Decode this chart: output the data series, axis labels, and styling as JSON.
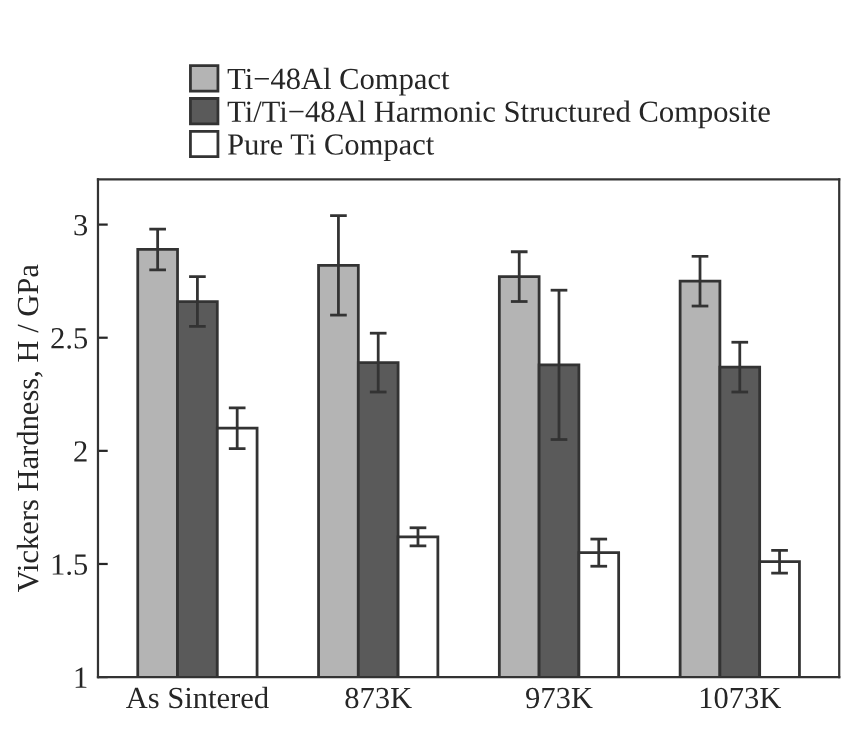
{
  "chart_data": {
    "type": "bar",
    "ylabel": "Vickers Hardness, H / GPa",
    "categories": [
      "As Sintered",
      "873K",
      "973K",
      "1073K"
    ],
    "series": [
      {
        "name": "Ti−48Al Compact",
        "color": "#b4b4b4",
        "values": [
          2.89,
          2.82,
          2.77,
          2.75
        ],
        "errors": [
          0.09,
          0.22,
          0.11,
          0.11
        ]
      },
      {
        "name": "Ti/Ti−48Al Harmonic Structured Composite",
        "color": "#5a5a5a",
        "values": [
          2.66,
          2.39,
          2.38,
          2.37
        ],
        "errors": [
          0.11,
          0.13,
          0.33,
          0.11
        ]
      },
      {
        "name": "Pure Ti Compact",
        "color": "#ffffff",
        "values": [
          2.1,
          1.62,
          1.55,
          1.51
        ],
        "errors": [
          0.09,
          0.04,
          0.06,
          0.05
        ]
      }
    ],
    "ylim": [
      1,
      3.2
    ],
    "yticks": [
      1,
      1.5,
      2,
      2.5,
      3
    ],
    "grid": false,
    "legend": "top"
  }
}
